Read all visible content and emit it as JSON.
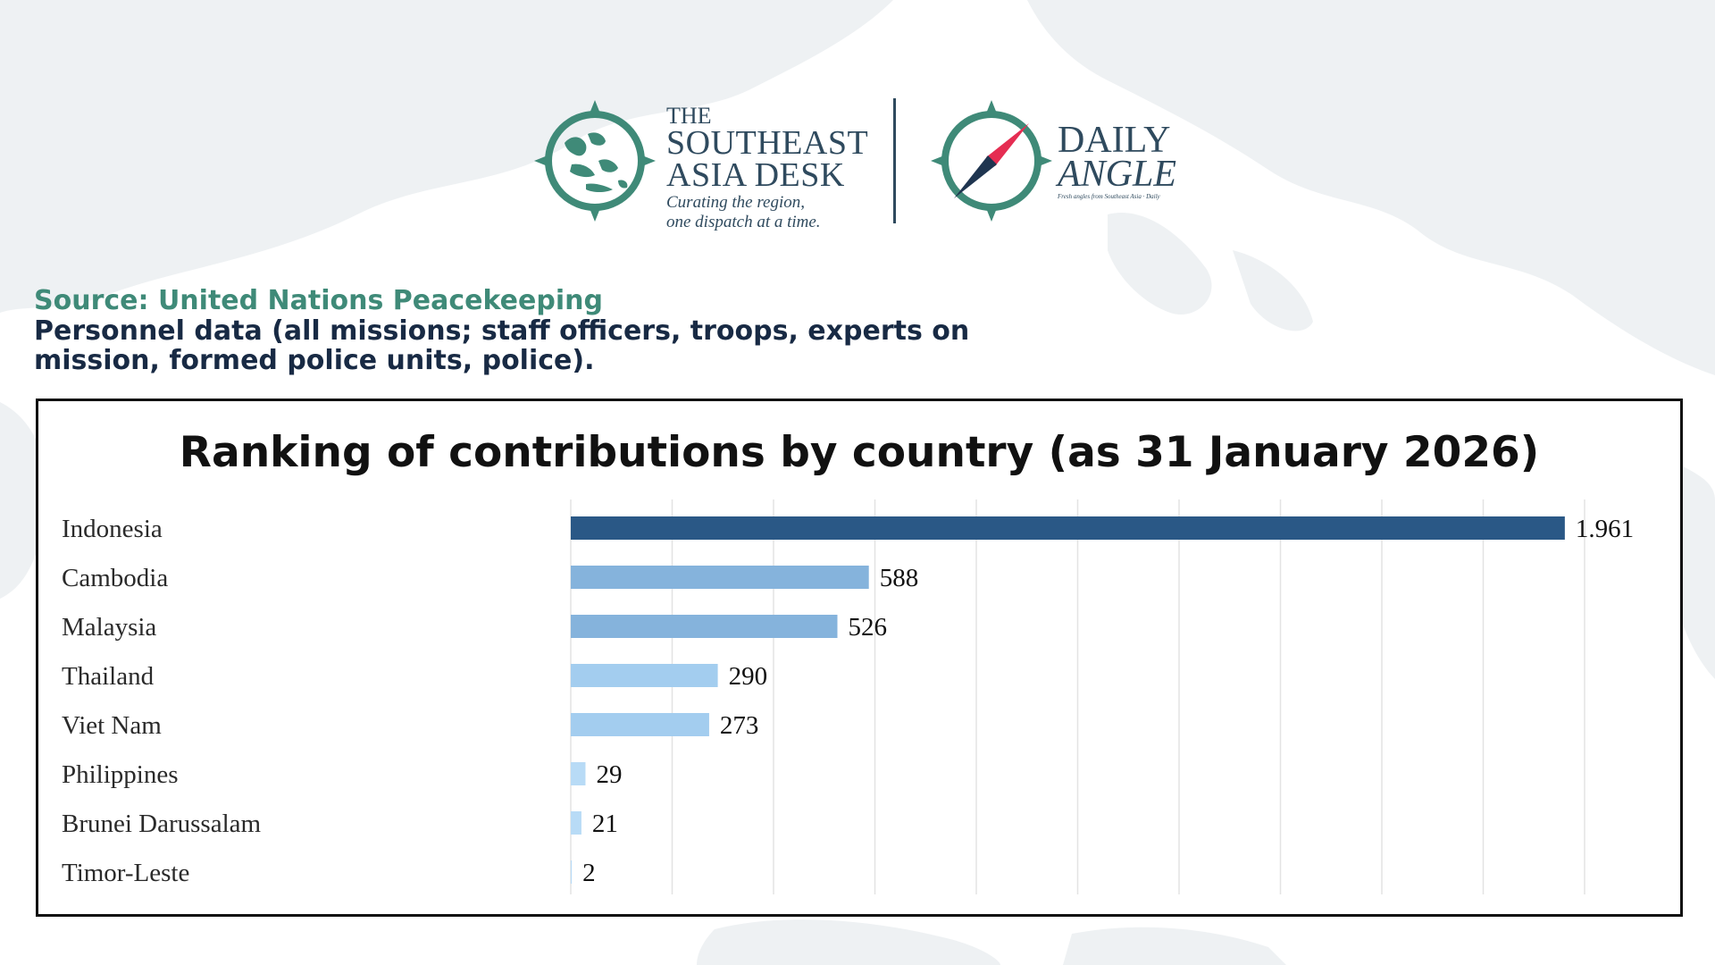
{
  "logo_left": {
    "line1": "THE",
    "line2": "SOUTHEAST",
    "line3": "ASIA DESK",
    "tagline1": "Curating the region,",
    "tagline2": "one dispatch at a time."
  },
  "logo_right": {
    "line1": "DAILY",
    "line2": "ANGLE",
    "tagline": "Fresh angles from Southeast Asia · Daily"
  },
  "source": {
    "label": "Source: United Nations Peacekeeping",
    "description_line1": "Personnel data (all missions; staff officers, troops, experts on",
    "description_line2": "mission, formed police units, police)."
  },
  "colors": {
    "brand_teal": "#3f8a78",
    "brand_navy": "#2f4a5e",
    "bar_dark": "#2a5886",
    "bar_mid": "#85b3dc",
    "bar_light": "#a3cdef",
    "bar_pale": "#b8dbf6",
    "compass_red": "#e52d52"
  },
  "chart_data": {
    "type": "bar",
    "orientation": "horizontal",
    "title": "Ranking of contributions by country (as 31 January 2026)",
    "categories": [
      "Indonesia",
      "Cambodia",
      "Malaysia",
      "Thailand",
      "Viet Nam",
      "Philippines",
      "Brunei Darussalam",
      "Timor-Leste"
    ],
    "values": [
      1961,
      588,
      526,
      290,
      273,
      29,
      21,
      2
    ],
    "value_labels": [
      "1.961",
      "588",
      "526",
      "290",
      "273",
      "29",
      "21",
      "2"
    ],
    "xlim": [
      0,
      2000
    ],
    "grid": true,
    "gridline_step": 200,
    "xlabel": "",
    "ylabel": ""
  }
}
